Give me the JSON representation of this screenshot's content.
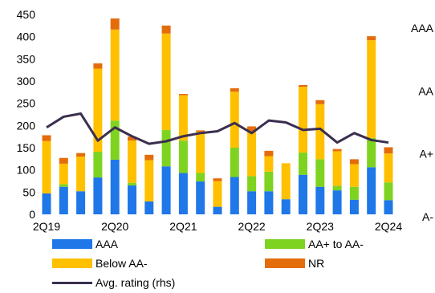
{
  "chart_data": {
    "type": "bar",
    "stacked": true,
    "categories": [
      "2Q19",
      "3Q19",
      "4Q19",
      "1Q20",
      "2Q20",
      "3Q20",
      "4Q20",
      "1Q21",
      "2Q21",
      "3Q21",
      "4Q21",
      "1Q22",
      "2Q22",
      "3Q22",
      "4Q22",
      "1Q23",
      "2Q23",
      "3Q23",
      "4Q23",
      "1Q24",
      "2Q24"
    ],
    "x_tick_labels": [
      {
        "index": 0,
        "label": "2Q19"
      },
      {
        "index": 4,
        "label": "2Q20"
      },
      {
        "index": 8,
        "label": "2Q21"
      },
      {
        "index": 12,
        "label": "2Q22"
      },
      {
        "index": 16,
        "label": "2Q23"
      },
      {
        "index": 20,
        "label": "2Q24"
      }
    ],
    "ylim": [
      0,
      450
    ],
    "yticks": [
      0,
      50,
      100,
      150,
      200,
      250,
      300,
      350,
      400,
      450
    ],
    "rhs_ticks": [
      "AAA",
      "AA",
      "A+",
      "A-"
    ],
    "rhs_levels": [
      {
        "label": "AAA",
        "level": 4
      },
      {
        "label": "AA",
        "level": 3
      },
      {
        "label": "A+",
        "level": 2
      },
      {
        "label": "A-",
        "level": 1
      }
    ],
    "series": [
      {
        "name": "AAA",
        "color": "#1f77e8",
        "kind": "bar",
        "values": [
          47,
          62,
          52,
          83,
          123,
          65,
          29,
          108,
          93,
          74,
          17,
          84,
          52,
          52,
          34,
          89,
          62,
          54,
          33,
          106,
          32
        ]
      },
      {
        "name": "AA+ to AA-",
        "color": "#7ed320",
        "kind": "bar",
        "values": [
          0,
          6,
          0,
          58,
          88,
          6,
          0,
          82,
          73,
          19,
          0,
          66,
          34,
          44,
          0,
          50,
          62,
          10,
          29,
          66,
          40
        ]
      },
      {
        "name": "Below AA-",
        "color": "#ffc000",
        "kind": "bar",
        "values": [
          118,
          46,
          78,
          187,
          205,
          95,
          93,
          217,
          102,
          93,
          58,
          126,
          100,
          35,
          81,
          148,
          124,
          78,
          51,
          220,
          65
        ]
      },
      {
        "name": "NR",
        "color": "#e46c0a",
        "kind": "bar",
        "values": [
          13,
          13,
          8,
          12,
          25,
          9,
          12,
          18,
          3,
          3,
          6,
          8,
          12,
          12,
          0,
          4,
          9,
          5,
          11,
          9,
          14
        ]
      },
      {
        "name": "Avg. rating (rhs)",
        "color": "#3b2e4f",
        "kind": "line",
        "axis": "rhs",
        "values": [
          2.42,
          2.59,
          2.64,
          2.21,
          2.42,
          2.28,
          2.16,
          2.2,
          2.28,
          2.33,
          2.36,
          2.49,
          2.33,
          2.53,
          2.5,
          2.38,
          2.4,
          2.18,
          2.33,
          2.22,
          2.18
        ]
      }
    ]
  }
}
